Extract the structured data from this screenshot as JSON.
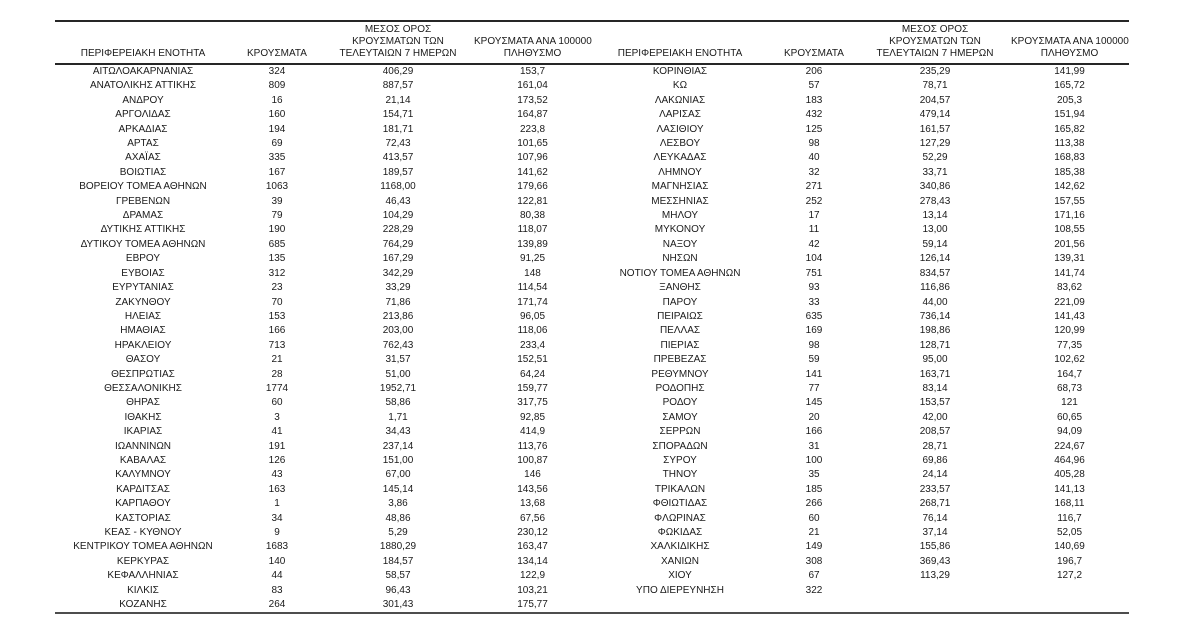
{
  "document": {
    "type": "regional-covid-statistics-table",
    "background_color": "#ffffff",
    "text_color": "#1a1a1a",
    "rule_color": "#262626"
  },
  "table": {
    "headers": {
      "region": "ΠΕΡΙΦΕΡΕΙΑΚΗ ΕΝΟΤΗΤΑ",
      "cases": "ΚΡΟΥΣΜΑΤΑ",
      "avg_lines": [
        "ΜΕΣΟΣ ΟΡΟΣ",
        "ΚΡΟΥΣΜΑΤΩΝ ΤΩΝ",
        "ΤΕΛΕΥΤΑΙΩΝ 7 ΗΜΕΡΩΝ"
      ],
      "per100k_lines": [
        "ΚΡΟΥΣΜΑΤΑ ΑΝΑ 100000",
        "ΠΛΗΘΥΣΜΟ"
      ]
    },
    "left_rows": [
      [
        "ΑΙΤΩΛΟΑΚΑΡΝΑΝΙΑΣ",
        "324",
        "406,29",
        "153,7"
      ],
      [
        "ΑΝΑΤΟΛΙΚΗΣ ΑΤΤΙΚΗΣ",
        "809",
        "887,57",
        "161,04"
      ],
      [
        "ΑΝΔΡΟΥ",
        "16",
        "21,14",
        "173,52"
      ],
      [
        "ΑΡΓΟΛΙΔΑΣ",
        "160",
        "154,71",
        "164,87"
      ],
      [
        "ΑΡΚΑΔΙΑΣ",
        "194",
        "181,71",
        "223,8"
      ],
      [
        "ΑΡΤΑΣ",
        "69",
        "72,43",
        "101,65"
      ],
      [
        "ΑΧΑΪΑΣ",
        "335",
        "413,57",
        "107,96"
      ],
      [
        "ΒΟΙΩΤΙΑΣ",
        "167",
        "189,57",
        "141,62"
      ],
      [
        "ΒΟΡΕΙΟΥ ΤΟΜΕΑ ΑΘΗΝΩΝ",
        "1063",
        "1168,00",
        "179,66"
      ],
      [
        "ΓΡΕΒΕΝΩΝ",
        "39",
        "46,43",
        "122,81"
      ],
      [
        "ΔΡΑΜΑΣ",
        "79",
        "104,29",
        "80,38"
      ],
      [
        "ΔΥΤΙΚΗΣ ΑΤΤΙΚΗΣ",
        "190",
        "228,29",
        "118,07"
      ],
      [
        "ΔΥΤΙΚΟΥ ΤΟΜΕΑ ΑΘΗΝΩΝ",
        "685",
        "764,29",
        "139,89"
      ],
      [
        "ΕΒΡΟΥ",
        "135",
        "167,29",
        "91,25"
      ],
      [
        "ΕΥΒΟΙΑΣ",
        "312",
        "342,29",
        "148"
      ],
      [
        "ΕΥΡΥΤΑΝΙΑΣ",
        "23",
        "33,29",
        "114,54"
      ],
      [
        "ΖΑΚΥΝΘΟΥ",
        "70",
        "71,86",
        "171,74"
      ],
      [
        "ΗΛΕΙΑΣ",
        "153",
        "213,86",
        "96,05"
      ],
      [
        "ΗΜΑΘΙΑΣ",
        "166",
        "203,00",
        "118,06"
      ],
      [
        "ΗΡΑΚΛΕΙΟΥ",
        "713",
        "762,43",
        "233,4"
      ],
      [
        "ΘΑΣΟΥ",
        "21",
        "31,57",
        "152,51"
      ],
      [
        "ΘΕΣΠΡΩΤΙΑΣ",
        "28",
        "51,00",
        "64,24"
      ],
      [
        "ΘΕΣΣΑΛΟΝΙΚΗΣ",
        "1774",
        "1952,71",
        "159,77"
      ],
      [
        "ΘΗΡΑΣ",
        "60",
        "58,86",
        "317,75"
      ],
      [
        "ΙΘΑΚΗΣ",
        "3",
        "1,71",
        "92,85"
      ],
      [
        "ΙΚΑΡΙΑΣ",
        "41",
        "34,43",
        "414,9"
      ],
      [
        "ΙΩΑΝΝΙΝΩΝ",
        "191",
        "237,14",
        "113,76"
      ],
      [
        "ΚΑΒΑΛΑΣ",
        "126",
        "151,00",
        "100,87"
      ],
      [
        "ΚΑΛΥΜΝΟΥ",
        "43",
        "67,00",
        "146"
      ],
      [
        "ΚΑΡΔΙΤΣΑΣ",
        "163",
        "145,14",
        "143,56"
      ],
      [
        "ΚΑΡΠΑΘΟΥ",
        "1",
        "3,86",
        "13,68"
      ],
      [
        "ΚΑΣΤΟΡΙΑΣ",
        "34",
        "48,86",
        "67,56"
      ],
      [
        "ΚΕΑΣ - ΚΥΘΝΟΥ",
        "9",
        "5,29",
        "230,12"
      ],
      [
        "ΚΕΝΤΡΙΚΟΥ ΤΟΜΕΑ ΑΘΗΝΩΝ",
        "1683",
        "1880,29",
        "163,47"
      ],
      [
        "ΚΕΡΚΥΡΑΣ",
        "140",
        "184,57",
        "134,14"
      ],
      [
        "ΚΕΦΑΛΛΗΝΙΑΣ",
        "44",
        "58,57",
        "122,9"
      ],
      [
        "ΚΙΛΚΙΣ",
        "83",
        "96,43",
        "103,21"
      ],
      [
        "ΚΟΖΑΝΗΣ",
        "264",
        "301,43",
        "175,77"
      ]
    ],
    "right_rows": [
      [
        "ΚΟΡΙΝΘΙΑΣ",
        "206",
        "235,29",
        "141,99"
      ],
      [
        "ΚΩ",
        "57",
        "78,71",
        "165,72"
      ],
      [
        "ΛΑΚΩΝΙΑΣ",
        "183",
        "204,57",
        "205,3"
      ],
      [
        "ΛΑΡΙΣΑΣ",
        "432",
        "479,14",
        "151,94"
      ],
      [
        "ΛΑΣΙΘΙΟΥ",
        "125",
        "161,57",
        "165,82"
      ],
      [
        "ΛΕΣΒΟΥ",
        "98",
        "127,29",
        "113,38"
      ],
      [
        "ΛΕΥΚΑΔΑΣ",
        "40",
        "52,29",
        "168,83"
      ],
      [
        "ΛΗΜΝΟΥ",
        "32",
        "33,71",
        "185,38"
      ],
      [
        "ΜΑΓΝΗΣΙΑΣ",
        "271",
        "340,86",
        "142,62"
      ],
      [
        "ΜΕΣΣΗΝΙΑΣ",
        "252",
        "278,43",
        "157,55"
      ],
      [
        "ΜΗΛΟΥ",
        "17",
        "13,14",
        "171,16"
      ],
      [
        "ΜΥΚΟΝΟΥ",
        "11",
        "13,00",
        "108,55"
      ],
      [
        "ΝΑΞΟΥ",
        "42",
        "59,14",
        "201,56"
      ],
      [
        "ΝΗΣΩΝ",
        "104",
        "126,14",
        "139,31"
      ],
      [
        "ΝΟΤΙΟΥ ΤΟΜΕΑ ΑΘΗΝΩΝ",
        "751",
        "834,57",
        "141,74"
      ],
      [
        "ΞΑΝΘΗΣ",
        "93",
        "116,86",
        "83,62"
      ],
      [
        "ΠΑΡΟΥ",
        "33",
        "44,00",
        "221,09"
      ],
      [
        "ΠΕΙΡΑΙΩΣ",
        "635",
        "736,14",
        "141,43"
      ],
      [
        "ΠΕΛΛΑΣ",
        "169",
        "198,86",
        "120,99"
      ],
      [
        "ΠΙΕΡΙΑΣ",
        "98",
        "128,71",
        "77,35"
      ],
      [
        "ΠΡΕΒΕΖΑΣ",
        "59",
        "95,00",
        "102,62"
      ],
      [
        "ΡΕΘΥΜΝΟΥ",
        "141",
        "163,71",
        "164,7"
      ],
      [
        "ΡΟΔΟΠΗΣ",
        "77",
        "83,14",
        "68,73"
      ],
      [
        "ΡΟΔΟΥ",
        "145",
        "153,57",
        "121"
      ],
      [
        "ΣΑΜΟΥ",
        "20",
        "42,00",
        "60,65"
      ],
      [
        "ΣΕΡΡΩΝ",
        "166",
        "208,57",
        "94,09"
      ],
      [
        "ΣΠΟΡΑΔΩΝ",
        "31",
        "28,71",
        "224,67"
      ],
      [
        "ΣΥΡΟΥ",
        "100",
        "69,86",
        "464,96"
      ],
      [
        "ΤΗΝΟΥ",
        "35",
        "24,14",
        "405,28"
      ],
      [
        "ΤΡΙΚΑΛΩΝ",
        "185",
        "233,57",
        "141,13"
      ],
      [
        "ΦΘΙΩΤΙΔΑΣ",
        "266",
        "268,71",
        "168,11"
      ],
      [
        "ΦΛΩΡΙΝΑΣ",
        "60",
        "76,14",
        "116,7"
      ],
      [
        "ΦΩΚΙΔΑΣ",
        "21",
        "37,14",
        "52,05"
      ],
      [
        "ΧΑΛΚΙΔΙΚΗΣ",
        "149",
        "155,86",
        "140,69"
      ],
      [
        "ΧΑΝΙΩΝ",
        "308",
        "369,43",
        "196,7"
      ],
      [
        "ΧΙΟΥ",
        "67",
        "113,29",
        "127,2"
      ],
      [
        "ΥΠΟ ΔΙΕΡΕΥΝΗΣΗ",
        "322",
        "",
        ""
      ]
    ]
  }
}
